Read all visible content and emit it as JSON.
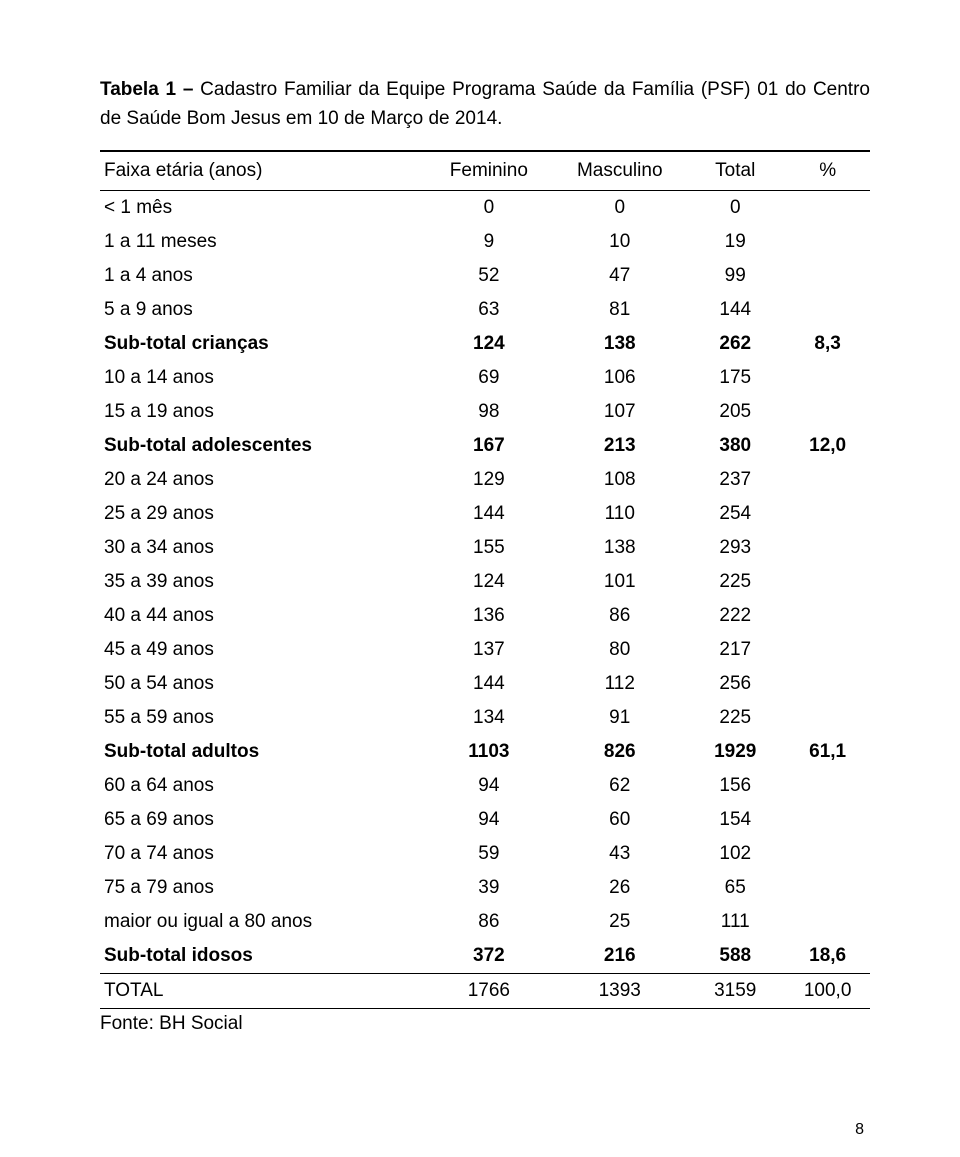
{
  "caption": {
    "prefix_bold": "Tabela 1 –",
    "rest": " Cadastro Familiar da Equipe Programa Saúde da Família (PSF) 01 do Centro de Saúde Bom Jesus em 10 de Março de 2014."
  },
  "table": {
    "columns": [
      "Faixa etária (anos)",
      "Feminino",
      "Masculino",
      "Total",
      "%"
    ],
    "column_widths_pct": [
      42,
      17,
      17,
      13,
      11
    ],
    "rows": [
      {
        "label": "< 1 mês",
        "feminino": "0",
        "masculino": "0",
        "total": "0",
        "pct": "",
        "bold": false
      },
      {
        "label": "1 a 11 meses",
        "feminino": "9",
        "masculino": "10",
        "total": "19",
        "pct": "",
        "bold": false
      },
      {
        "label": "1 a 4 anos",
        "feminino": "52",
        "masculino": "47",
        "total": "99",
        "pct": "",
        "bold": false
      },
      {
        "label": "5 a 9 anos",
        "feminino": "63",
        "masculino": "81",
        "total": "144",
        "pct": "",
        "bold": false
      },
      {
        "label": "Sub-total crianças",
        "feminino": "124",
        "masculino": "138",
        "total": "262",
        "pct": "8,3",
        "bold": true
      },
      {
        "label": "10 a 14 anos",
        "feminino": "69",
        "masculino": "106",
        "total": "175",
        "pct": "",
        "bold": false
      },
      {
        "label": "15 a 19 anos",
        "feminino": "98",
        "masculino": "107",
        "total": "205",
        "pct": "",
        "bold": false
      },
      {
        "label": "Sub-total adolescentes",
        "feminino": "167",
        "masculino": "213",
        "total": "380",
        "pct": "12,0",
        "bold": true
      },
      {
        "label": "20 a 24 anos",
        "feminino": "129",
        "masculino": "108",
        "total": "237",
        "pct": "",
        "bold": false
      },
      {
        "label": "25 a 29 anos",
        "feminino": "144",
        "masculino": "110",
        "total": "254",
        "pct": "",
        "bold": false
      },
      {
        "label": "30 a 34 anos",
        "feminino": "155",
        "masculino": "138",
        "total": "293",
        "pct": "",
        "bold": false
      },
      {
        "label": "35 a 39 anos",
        "feminino": "124",
        "masculino": "101",
        "total": "225",
        "pct": "",
        "bold": false
      },
      {
        "label": "40 a 44 anos",
        "feminino": "136",
        "masculino": "86",
        "total": "222",
        "pct": "",
        "bold": false
      },
      {
        "label": "45 a 49 anos",
        "feminino": "137",
        "masculino": "80",
        "total": "217",
        "pct": "",
        "bold": false
      },
      {
        "label": "50 a 54 anos",
        "feminino": "144",
        "masculino": "112",
        "total": "256",
        "pct": "",
        "bold": false
      },
      {
        "label": "55 a 59 anos",
        "feminino": "134",
        "masculino": "91",
        "total": "225",
        "pct": "",
        "bold": false
      },
      {
        "label": "Sub-total adultos",
        "feminino": "1103",
        "masculino": "826",
        "total": "1929",
        "pct": "61,1",
        "bold": true
      },
      {
        "label": "60 a 64 anos",
        "feminino": "94",
        "masculino": "62",
        "total": "156",
        "pct": "",
        "bold": false
      },
      {
        "label": "65 a 69 anos",
        "feminino": "94",
        "masculino": "60",
        "total": "154",
        "pct": "",
        "bold": false
      },
      {
        "label": "70 a 74 anos",
        "feminino": "59",
        "masculino": "43",
        "total": "102",
        "pct": "",
        "bold": false
      },
      {
        "label": "75 a 79 anos",
        "feminino": "39",
        "masculino": "26",
        "total": "65",
        "pct": "",
        "bold": false
      },
      {
        "label": "maior ou igual a 80 anos",
        "feminino": "86",
        "masculino": "25",
        "total": "111",
        "pct": "",
        "bold": false
      },
      {
        "label": "Sub-total idosos",
        "feminino": "372",
        "masculino": "216",
        "total": "588",
        "pct": "18,6",
        "bold": true
      }
    ],
    "total_row": {
      "label": "TOTAL",
      "feminino": "1766",
      "masculino": "1393",
      "total": "3159",
      "pct": "100,0"
    },
    "border_color": "#000000",
    "background_color": "#ffffff",
    "text_color": "#000000",
    "font_size_pt": 14,
    "header_alignment": "center",
    "number_alignment": "center",
    "label_alignment": "left"
  },
  "source_label": "Fonte: BH Social",
  "page_number": "8"
}
